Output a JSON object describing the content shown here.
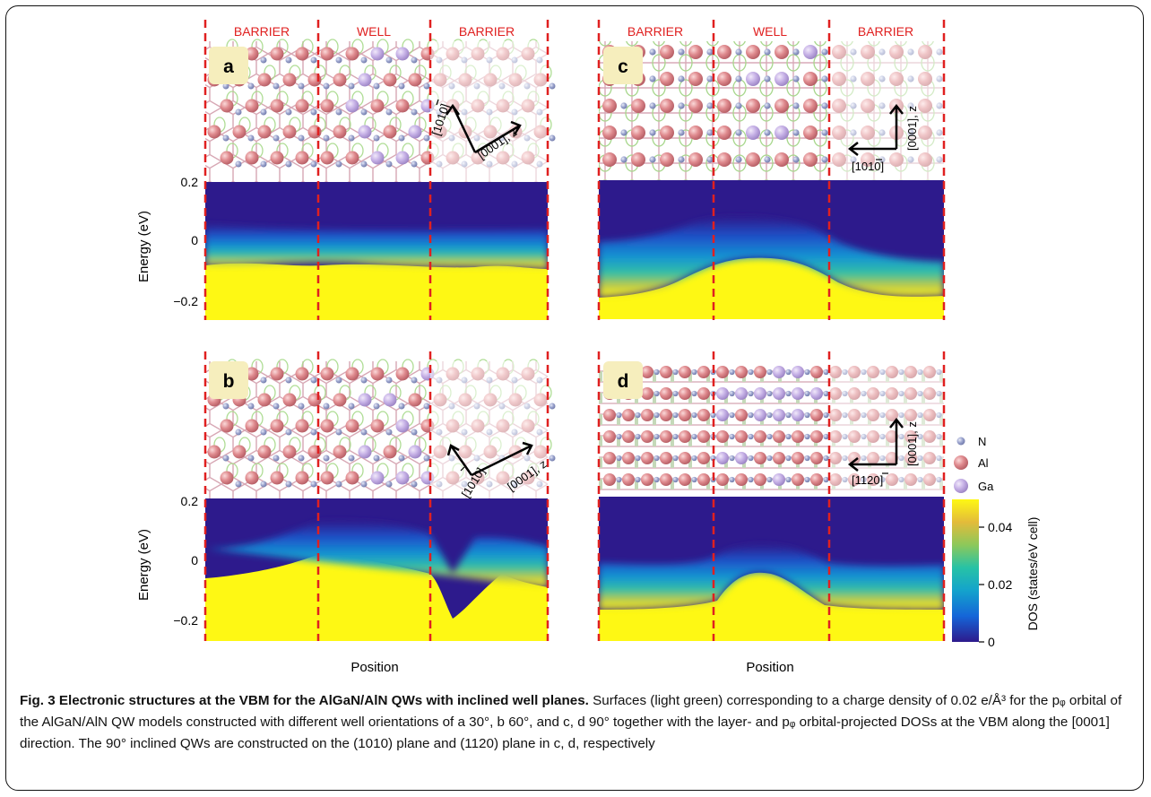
{
  "figure": {
    "panels": [
      {
        "letter": "a",
        "regions": [
          "BARRIER",
          "WELL",
          "BARRIER"
        ],
        "axis_h": "[1010]",
        "axis_v": "[0001], z"
      },
      {
        "letter": "b",
        "regions": [
          "",
          "",
          ""
        ],
        "axis_h": "[1010]",
        "axis_v": "[0001], z"
      },
      {
        "letter": "c",
        "regions": [
          "BARRIER",
          "WELL",
          "BARRIER"
        ],
        "axis_h": "[1010]",
        "axis_v": "[0001], z"
      },
      {
        "letter": "d",
        "regions": [
          "",
          "",
          ""
        ],
        "axis_h": "[1120]",
        "axis_v": "[0001], z"
      }
    ],
    "y_axis_label": "Energy (eV)",
    "y_ticks": [
      "0.2",
      "0",
      "−0.2"
    ],
    "x_axis_label": "Position",
    "legend": [
      {
        "label": "N",
        "color": "#9aa4cc"
      },
      {
        "label": "Al",
        "color": "#e88f8f"
      },
      {
        "label": "Ga",
        "color": "#c9b4e6"
      }
    ],
    "colorbar": {
      "label": "DOS (states/eV cell)",
      "ticks": [
        "0.04",
        "0.02",
        "0"
      ],
      "max": 0.05,
      "colors": [
        "#2d1a8c",
        "#1565d8",
        "#14a3cc",
        "#27c2a6",
        "#8cc85a",
        "#e3bb3a",
        "#fef814"
      ]
    },
    "colors": {
      "dashed_line": "#e02020",
      "region_label": "#e02020",
      "badge": "#f6eebd"
    }
  },
  "caption": {
    "title": "Fig. 3 Electronic structures at the VBM for the AlGaN/AlN QWs with inclined well planes.",
    "body": "Surfaces (light green) corresponding to a charge density of 0.02 e/Å³ for the pᵩ orbital of the AlGaN/AlN QW models constructed with different well orientations of a 30°, b 60°, and c, d 90° together with the layer- and pᵩ orbital-projected DOSs at the VBM along the [0001] direction. The 90° inclined QWs are constructed on the (1010) plane and (1120) plane in c, d, respectively"
  }
}
